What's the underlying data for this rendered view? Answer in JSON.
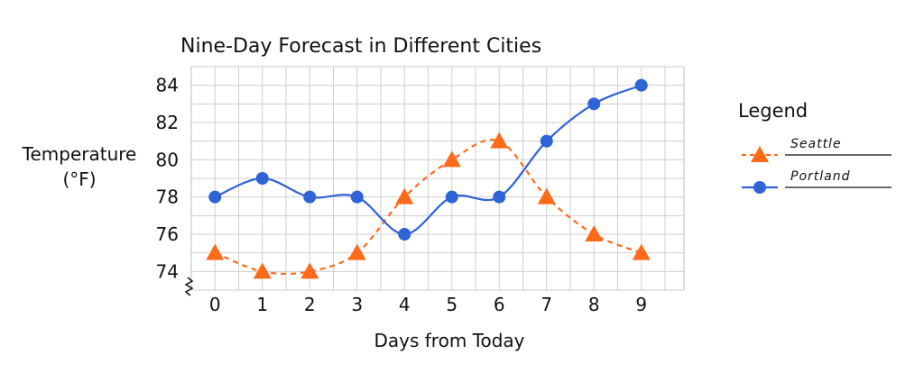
{
  "chart_data": {
    "type": "line",
    "title": "Nine-Day Forecast in Different Cities",
    "xlabel": "Days from Today",
    "ylabel_line1": "Temperature",
    "ylabel_line2": "(°F)",
    "x": [
      0,
      1,
      2,
      3,
      4,
      5,
      6,
      7,
      8,
      9
    ],
    "xlim": [
      -0.5,
      9.9
    ],
    "yticks": [
      74,
      76,
      78,
      80,
      82,
      84
    ],
    "ylim": [
      73,
      85
    ],
    "y_axis_break": true,
    "grid": true,
    "legend_title": "Legend",
    "legend_position": "right",
    "series": [
      {
        "name": "Seattle",
        "values": [
          75,
          74,
          74,
          75,
          78,
          80,
          81,
          78,
          76,
          75
        ],
        "color": "#ff6a1a",
        "marker": "triangle",
        "line_style": "dashed"
      },
      {
        "name": "Portland",
        "values": [
          78,
          79,
          78,
          78,
          76,
          78,
          78,
          81,
          83,
          84
        ],
        "color": "#2f63d6",
        "marker": "circle",
        "line_style": "solid"
      }
    ]
  }
}
